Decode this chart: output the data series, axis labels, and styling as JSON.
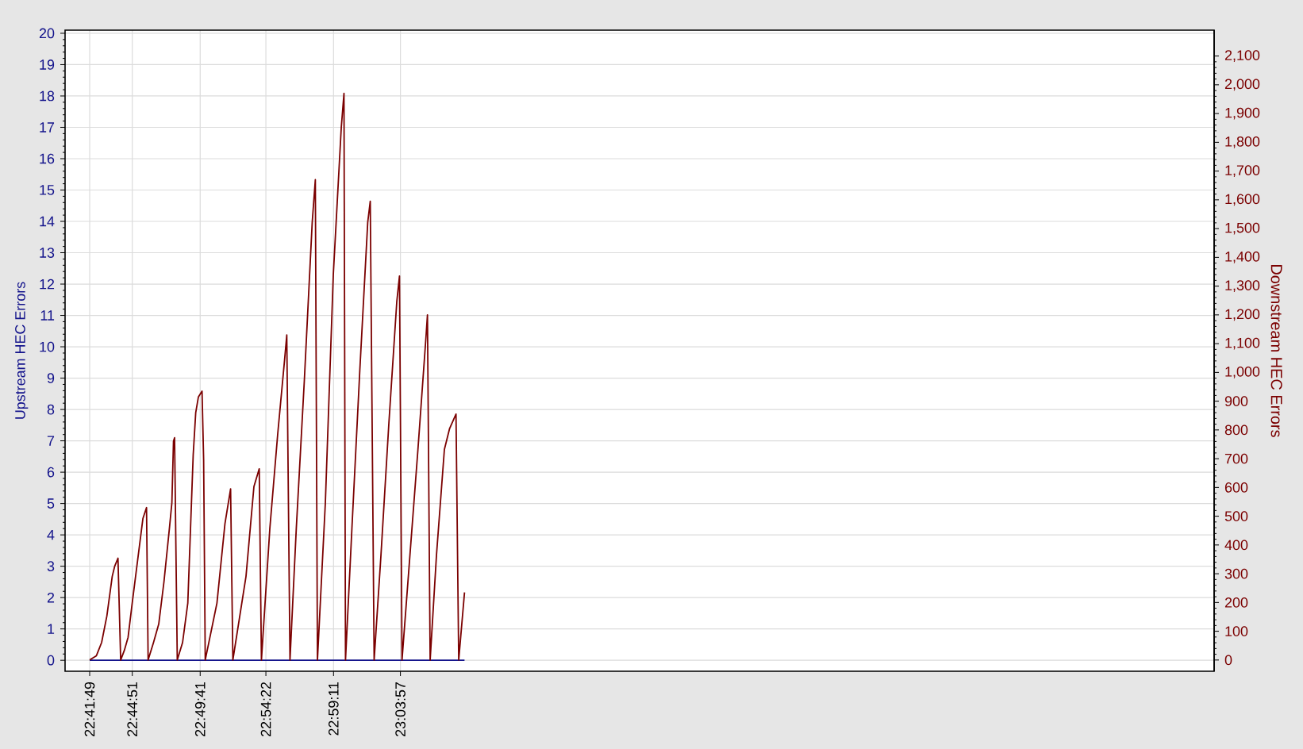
{
  "chart_data": {
    "type": "line",
    "ylabel": "Upstream HEC Errors",
    "y2label": "Downstream HEC Errors",
    "xlim": [
      22.6677,
      24.0318
    ],
    "xticks": [
      {
        "value": 22.6969,
        "label": "22:41:49"
      },
      {
        "value": 22.7475,
        "label": "22:44:51"
      },
      {
        "value": 22.8281,
        "label": "22:49:41"
      },
      {
        "value": 22.9061,
        "label": "22:54:22"
      },
      {
        "value": 22.9864,
        "label": "22:59:11"
      },
      {
        "value": 23.0658,
        "label": "23:03:57"
      }
    ],
    "ylim": [
      -0.35,
      20.1
    ],
    "yticks": [
      0,
      1,
      2,
      3,
      4,
      5,
      6,
      7,
      8,
      9,
      10,
      11,
      12,
      13,
      14,
      15,
      16,
      17,
      18,
      19,
      20
    ],
    "y2lim": [
      -39,
      2190
    ],
    "y2ticks": [
      0,
      100,
      200,
      300,
      400,
      500,
      600,
      700,
      800,
      900,
      {
        "value": 1000,
        "label": "1,000"
      },
      {
        "value": 1100,
        "label": "1,100"
      },
      {
        "value": 1200,
        "label": "1,200"
      },
      {
        "value": 1300,
        "label": "1,300"
      },
      {
        "value": 1400,
        "label": "1,400"
      },
      {
        "value": 1500,
        "label": "1,500"
      },
      {
        "value": 1600,
        "label": "1,600"
      },
      {
        "value": 1700,
        "label": "1,700"
      },
      {
        "value": 1800,
        "label": "1,800"
      },
      {
        "value": 1900,
        "label": "1,900"
      },
      {
        "value": 2000,
        "label": "2,000"
      },
      {
        "value": 2100,
        "label": "2,100"
      }
    ],
    "grid": true,
    "series": [
      {
        "color": "#7b0000",
        "axis": "y2",
        "x": [
          22.6969,
          22.7049,
          22.7111,
          22.7173,
          22.7237,
          22.7267,
          22.7305,
          22.7337,
          22.738,
          22.7425,
          22.7474,
          22.7538,
          22.7601,
          22.7644,
          22.7663,
          22.7727,
          22.7789,
          22.7851,
          22.7915,
          22.7945,
          22.7964,
          22.7977,
          22.8009,
          22.8072,
          22.8134,
          22.8198,
          22.8228,
          22.826,
          22.8303,
          22.8322,
          22.8341,
          22.848,
          22.8575,
          22.8642,
          22.8669,
          22.8825,
          22.8919,
          22.8982,
          22.9008,
          22.9108,
          22.9202,
          22.9283,
          22.9309,
          22.9347,
          22.9422,
          22.9517,
          22.9611,
          22.9648,
          22.9673,
          22.9767,
          22.9861,
          22.9956,
          22.9988,
          23.0006,
          23.0082,
          23.0176,
          23.027,
          23.03,
          23.0346,
          23.0427,
          23.0521,
          23.0615,
          23.0647,
          23.0677,
          23.0771,
          23.0866,
          23.096,
          23.0979,
          23.1011,
          23.1086,
          23.118,
          23.1242,
          23.1318,
          23.135,
          23.1419
        ],
        "values": [
          0,
          15,
          61,
          153,
          291,
          327,
          354,
          0,
          33,
          79,
          198,
          346,
          492,
          530,
          0,
          61,
          125,
          272,
          456,
          547,
          761,
          773,
          0,
          61,
          198,
          713,
          860,
          915,
          935,
          695,
          0,
          198,
          474,
          595,
          0,
          291,
          603,
          665,
          0,
          458,
          788,
          1044,
          1130,
          0,
          458,
          970,
          1522,
          1670,
          0,
          547,
          1338,
          1852,
          1970,
          0,
          456,
          1007,
          1522,
          1595,
          0,
          364,
          823,
          1246,
          1335,
          0,
          364,
          732,
          1117,
          1200,
          0,
          364,
          732,
          805,
          855,
          0,
          235
        ]
      },
      {
        "color": "#14148c",
        "x": [
          22.6969,
          23.1419
        ],
        "values": [
          0,
          0
        ]
      }
    ]
  }
}
